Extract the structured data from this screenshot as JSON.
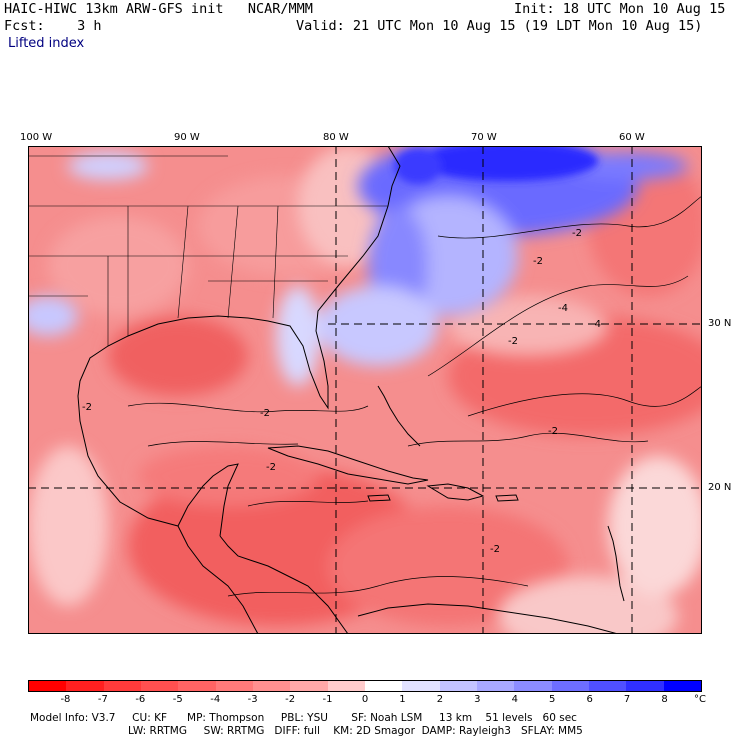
{
  "header": {
    "title": "HAIC-HIWC 13km ARW-GFS init   NCAR/MMM",
    "init": "Init: 18 UTC Mon 10 Aug 15",
    "fcst": "Fcst:    3 h",
    "valid": "Valid: 21 UTC Mon 10 Aug 15 (19 LDT Mon 10 Aug 15)",
    "field": "Lifted index"
  },
  "axes": {
    "lon_labels": [
      {
        "text": "100 W",
        "lon": -100
      },
      {
        "text": "90 W",
        "lon": -90
      },
      {
        "text": "80 W",
        "lon": -80
      },
      {
        "text": "70 W",
        "lon": -70
      },
      {
        "text": "60 W",
        "lon": -60
      }
    ],
    "lat_labels": [
      {
        "text": "30 N",
        "lat": 30
      },
      {
        "text": "20 N",
        "lat": 20
      }
    ]
  },
  "contour_labels": [
    "-2",
    "-2",
    "-2",
    "-2",
    "-2",
    "-2",
    "-2",
    "-4",
    "-4",
    "-2"
  ],
  "colorbar": {
    "ticks": [
      "-8",
      "-7",
      "-6",
      "-5",
      "-4",
      "-3",
      "-2",
      "-1",
      "0",
      "1",
      "2",
      "3",
      "4",
      "5",
      "6",
      "7",
      "8"
    ],
    "unit": "°C",
    "colors": [
      "#ff0000",
      "#ff2020",
      "#ff3b3b",
      "#ff5050",
      "#ff6464",
      "#ff7a7a",
      "#ff9090",
      "#ffa8a8",
      "#ffcccc",
      "#ffffff",
      "#e2e2ff",
      "#c4c4ff",
      "#a8a8ff",
      "#8c8cff",
      "#6e6eff",
      "#5050ff",
      "#3030ff",
      "#0000ff"
    ]
  },
  "footer": {
    "line1": "Model Info: V3.7     CU: KF      MP: Thompson     PBL: YSU       SF: Noah LSM     13 km    51 levels   60 sec",
    "line2": "LW: RRTMG     SW: RRTMG   DIFF: full    KM: 2D Smagor  DAMP: Rayleigh3   SFLAY: MM5"
  },
  "colors": {
    "land_base": "#f48a8a",
    "ocean_warm": "#f27070",
    "ocean_cool": "#5a5aff",
    "deep_blue": "#1a1aff",
    "pale": "#fbd6d6"
  }
}
